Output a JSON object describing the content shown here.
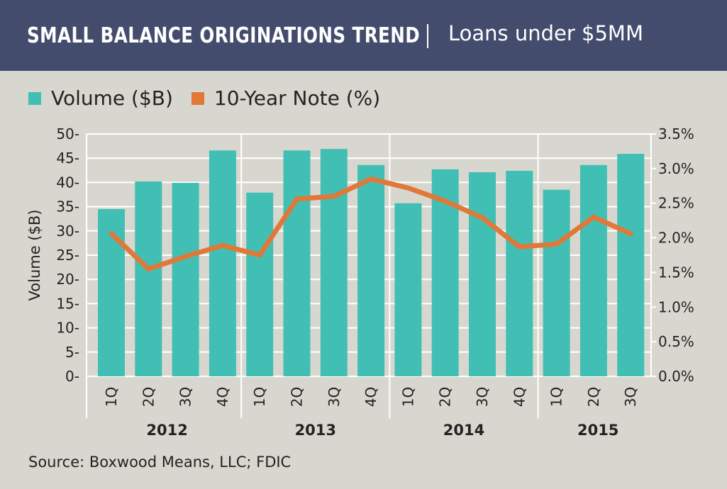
{
  "header": {
    "title": "SMALL BALANCE ORIGINATIONS TREND",
    "subtitle": "Loans under $5MM"
  },
  "source": "Source: Boxwood Means, LLC; FDIC",
  "colors": {
    "bar": "#42bfb5",
    "line": "#e07838",
    "header": "#434c6c",
    "background": "#d8d7cf",
    "grid": "#ffffff"
  },
  "chart_data": {
    "type": "bar+line",
    "categories": [
      "1Q",
      "2Q",
      "3Q",
      "4Q",
      "1Q",
      "2Q",
      "3Q",
      "4Q",
      "1Q",
      "2Q",
      "3Q",
      "4Q",
      "1Q",
      "2Q",
      "3Q"
    ],
    "groups": [
      {
        "label": "2012",
        "count": 4
      },
      {
        "label": "2013",
        "count": 4
      },
      {
        "label": "2014",
        "count": 4
      },
      {
        "label": "2015",
        "count": 3
      }
    ],
    "series": [
      {
        "name": "Volume ($B)",
        "type": "bar",
        "axis": "left",
        "values": [
          34.5,
          40.2,
          39.9,
          46.6,
          37.9,
          46.6,
          46.9,
          43.6,
          35.7,
          42.7,
          42.1,
          42.4,
          38.5,
          43.6,
          45.9
        ]
      },
      {
        "name": "10-Year Note (%)",
        "type": "line",
        "axis": "right",
        "values": [
          2.06,
          1.55,
          1.73,
          1.89,
          1.75,
          2.56,
          2.6,
          2.85,
          2.72,
          2.53,
          2.29,
          1.87,
          1.91,
          2.3,
          2.06
        ]
      }
    ],
    "ylabel": "Volume ($B)",
    "ylim": [
      0,
      50
    ],
    "yticks": [
      "0-",
      "5-",
      "10-",
      "15-",
      "20-",
      "25-",
      "30-",
      "35-",
      "40-",
      "45-",
      "50-"
    ],
    "y2lim": [
      0,
      3.5
    ],
    "y2ticks": [
      "0.0%",
      "0.5%",
      "1.0%",
      "1.5%",
      "2.0%",
      "2.5%",
      "3.0%",
      "3.5%"
    ],
    "grid": true,
    "legend": "top-left"
  }
}
